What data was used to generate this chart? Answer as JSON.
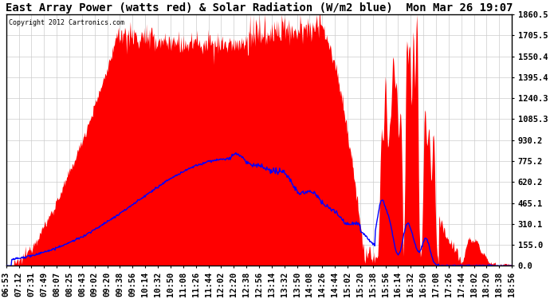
{
  "title": "East Array Power (watts red) & Solar Radiation (W/m2 blue)  Mon Mar 26 19:07",
  "copyright": "Copyright 2012 Cartronics.com",
  "y_ticks": [
    0.0,
    155.0,
    310.1,
    465.1,
    620.2,
    775.2,
    930.2,
    1085.3,
    1240.3,
    1395.4,
    1550.4,
    1705.5,
    1860.5
  ],
  "y_max": 1860.5,
  "x_labels": [
    "06:53",
    "07:12",
    "07:31",
    "07:49",
    "08:07",
    "08:25",
    "08:43",
    "09:02",
    "09:20",
    "09:38",
    "09:56",
    "10:14",
    "10:32",
    "10:50",
    "11:08",
    "11:26",
    "11:44",
    "12:02",
    "12:20",
    "12:38",
    "12:56",
    "13:14",
    "13:32",
    "13:50",
    "14:08",
    "14:26",
    "14:44",
    "15:02",
    "15:20",
    "15:38",
    "15:56",
    "16:14",
    "16:32",
    "16:50",
    "17:08",
    "17:26",
    "17:44",
    "18:02",
    "18:20",
    "18:38",
    "18:56"
  ],
  "background_color": "#ffffff",
  "plot_bg_color": "#ffffff",
  "red_color": "#ff0000",
  "blue_color": "#0000ff",
  "grid_color": "#cccccc",
  "title_fontsize": 10,
  "tick_fontsize": 7.5
}
